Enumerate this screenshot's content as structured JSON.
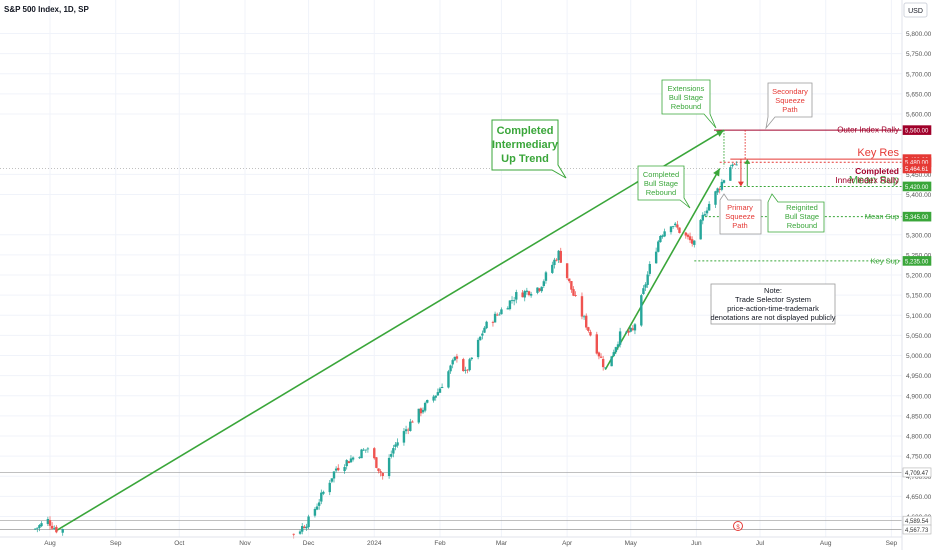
{
  "header": {
    "title": "S&P 500 Index, 1D, SP",
    "currency": "USD"
  },
  "colors": {
    "up": "#26a69a",
    "down": "#ef5350",
    "green": "#3aa63a",
    "red": "#e53935",
    "maroon": "#a0002a",
    "grid": "#f0f3fa",
    "axis_text": "#555555"
  },
  "chart_data": {
    "type": "candlestick",
    "x_ticks": [
      "Aug",
      "Sep",
      "Oct",
      "Nov",
      "Dec",
      "2024",
      "Feb",
      "Mar",
      "Apr",
      "May",
      "Jun",
      "Jul",
      "Aug",
      "Sep"
    ],
    "x_tick_dates": [
      "2023-08-01",
      "2023-09-01",
      "2023-10-01",
      "2023-11-01",
      "2023-12-01",
      "2024-01-01",
      "2024-02-01",
      "2024-03-01",
      "2024-04-01",
      "2024-05-01",
      "2024-06-01",
      "2024-07-01",
      "2024-08-01",
      "2024-09-01"
    ],
    "y_ticks": [
      "5,800.00",
      "5,750.00",
      "5,700.00",
      "5,650.00",
      "5,600.00",
      "5,450.00",
      "5,400.00",
      "5,300.00",
      "5,250.00",
      "5,200.00",
      "5,150.00",
      "5,100.00",
      "5,050.00",
      "5,000.00",
      "4,950.00",
      "4,900.00",
      "4,850.00",
      "4,800.00",
      "4,750.00",
      "4,700.00",
      "4,650.00",
      "4,600.00"
    ],
    "y_tick_values": [
      5800,
      5750,
      5700,
      5650,
      5600,
      5450,
      5400,
      5300,
      5250,
      5200,
      5150,
      5100,
      5050,
      5000,
      4950,
      4900,
      4850,
      4800,
      4750,
      4700,
      4650,
      4600
    ],
    "ylim": [
      4565,
      5835
    ],
    "price_anchors": [
      {
        "date": "2023-07-25",
        "close": 4570
      },
      {
        "date": "2023-07-31",
        "close": 4590
      },
      {
        "date": "2023-08-02",
        "close": 4578
      },
      {
        "date": "2023-08-04",
        "close": 4568
      },
      {
        "date": "2023-11-25",
        "close": 4558
      },
      {
        "date": "2023-12-01",
        "close": 4590
      },
      {
        "date": "2023-12-14",
        "close": 4720
      },
      {
        "date": "2023-12-29",
        "close": 4770
      },
      {
        "date": "2024-01-05",
        "close": 4700
      },
      {
        "date": "2024-01-10",
        "close": 4770
      },
      {
        "date": "2024-01-19",
        "close": 4840
      },
      {
        "date": "2024-01-31",
        "close": 4910
      },
      {
        "date": "2024-02-09",
        "close": 5000
      },
      {
        "date": "2024-02-13",
        "close": 4955
      },
      {
        "date": "2024-02-22",
        "close": 5070
      },
      {
        "date": "2024-03-08",
        "close": 5150
      },
      {
        "date": "2024-03-19",
        "close": 5170
      },
      {
        "date": "2024-03-28",
        "close": 5254
      },
      {
        "date": "2024-04-04",
        "close": 5150
      },
      {
        "date": "2024-04-19",
        "close": 4967
      },
      {
        "date": "2024-04-26",
        "close": 5050
      },
      {
        "date": "2024-05-02",
        "close": 5060
      },
      {
        "date": "2024-05-10",
        "close": 5220
      },
      {
        "date": "2024-05-15",
        "close": 5300
      },
      {
        "date": "2024-05-20",
        "close": 5330
      },
      {
        "date": "2024-05-31",
        "close": 5275
      },
      {
        "date": "2024-06-05",
        "close": 5360
      },
      {
        "date": "2024-06-12",
        "close": 5420
      },
      {
        "date": "2024-06-18",
        "close": 5480
      },
      {
        "date": "2024-06-20",
        "close": 5464
      }
    ],
    "levels": [
      {
        "label": "Outer Index Rally",
        "badge": "5,560.00",
        "value": 5560,
        "color": "#a0002a",
        "style": "solid"
      },
      {
        "label": "Key Res",
        "badge": "5,488.00",
        "value": 5488,
        "color": "#e53935",
        "style": "solid"
      },
      {
        "label": "",
        "badge": "5,480.00",
        "value": 5480,
        "color": "#e53935",
        "style": "dotted"
      },
      {
        "label": "",
        "badge": "5,464.61",
        "value": 5464.61,
        "color": "#e53935",
        "style": "current"
      },
      {
        "label": "Mean Sup",
        "badge": "5,420.00",
        "value": 5420,
        "color": "#3aa63a",
        "style": "dotted"
      },
      {
        "label": "Mean Sup",
        "badge": "5,345.00",
        "value": 5345,
        "color": "#3aa63a",
        "style": "dotted"
      },
      {
        "label": "Key Sup",
        "badge": "5,235.00",
        "value": 5235,
        "color": "#3aa63a",
        "style": "dotted"
      },
      {
        "label": "",
        "badge": "4,709.47",
        "value": 4709.47,
        "color": "#888888",
        "style": "grey"
      },
      {
        "label": "",
        "badge": "4,589.54",
        "value": 4589.54,
        "color": "#888888",
        "style": "grey"
      },
      {
        "label": "",
        "badge": "4,567.73",
        "value": 4567.73,
        "color": "#888888",
        "style": "grey"
      }
    ],
    "trendlines": [
      {
        "from": {
          "date": "2023-08-04",
          "value": 4565
        },
        "to": {
          "date": "2024-06-14",
          "value": 5560
        },
        "color": "#3aa63a"
      },
      {
        "from": {
          "date": "2024-04-19",
          "value": 4965
        },
        "to": {
          "date": "2024-06-12",
          "value": 5464.61
        },
        "color": "#3aa63a"
      }
    ]
  },
  "annotations": {
    "completed_intermediary": {
      "line1": "Completed",
      "line2": "Intermediary",
      "line3": "Up Trend"
    },
    "extensions_bull": {
      "line1": "Extensions",
      "line2": "Bull Stage",
      "line3": "Rebound"
    },
    "secondary_squeeze": {
      "line1": "Secondary",
      "line2": "Squeeze",
      "line3": "Path"
    },
    "completed_bull": {
      "line1": "Completed",
      "line2": "Bull Stage",
      "line3": "Rebound"
    },
    "primary_squeeze": {
      "line1": "Primary",
      "line2": "Squeeze",
      "line3": "Path"
    },
    "reignited_bull": {
      "line1": "Reignited",
      "line2": "Bull Stage",
      "line3": "Rebound"
    },
    "completed_inner": {
      "line1": "Completed",
      "line2": "Inner Index Rally"
    },
    "note": {
      "line1": "Note:",
      "line2": "Trade Selector System",
      "line3": "price-action-time-trademark",
      "line4": "denotations are not displayed publicly"
    }
  }
}
